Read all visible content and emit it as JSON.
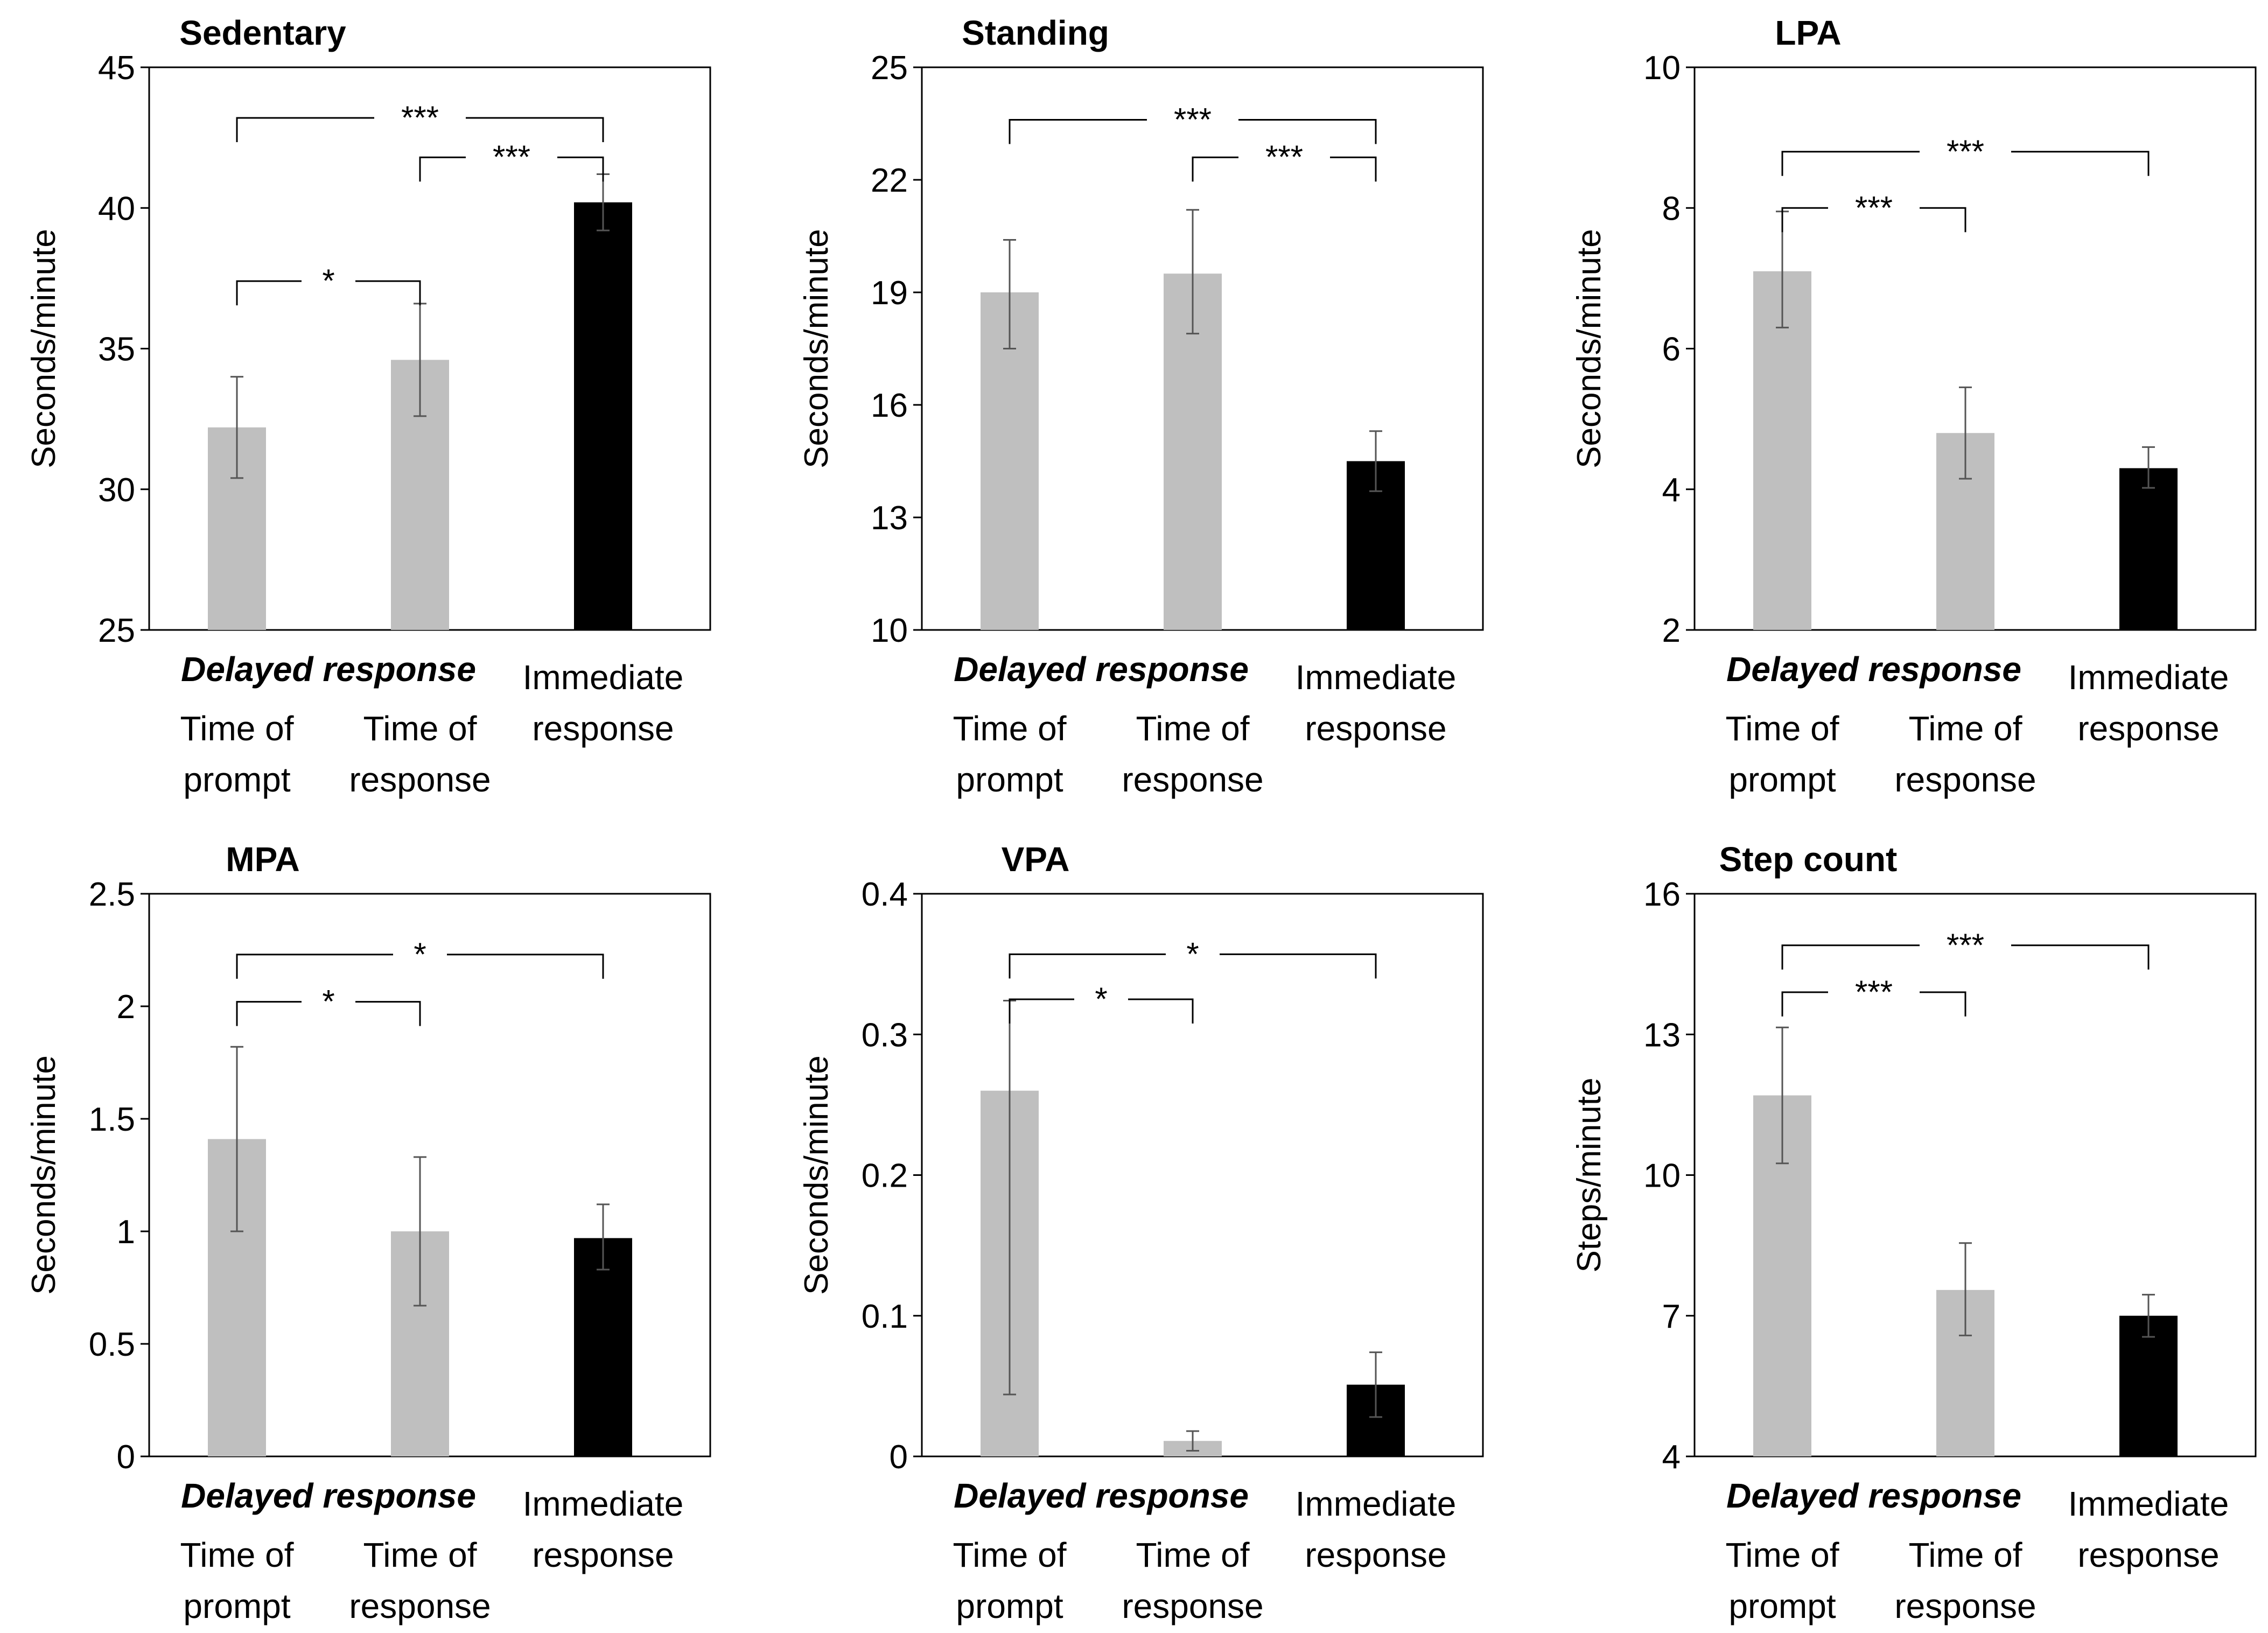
{
  "chart_data": [
    {
      "type": "bar",
      "title": "Sedentary",
      "ylabel": "Seconds/minute",
      "ylim": [
        25,
        45
      ],
      "yticks": [
        "25",
        "30",
        "35",
        "40",
        "45"
      ],
      "group_label": "Delayed response",
      "categories": [
        [
          "Time of",
          "prompt"
        ],
        [
          "Time of",
          "response"
        ],
        [
          "Immediate",
          "response"
        ]
      ],
      "values": [
        32.2,
        34.6,
        40.2
      ],
      "errors": [
        [
          30.4,
          34.0
        ],
        [
          32.6,
          36.6
        ],
        [
          39.2,
          41.2
        ]
      ],
      "colors": [
        "#bfbfbf",
        "#bfbfbf",
        "#000000"
      ],
      "brackets": [
        {
          "from": 0,
          "to": 2,
          "label": "***",
          "at": 43.2
        },
        {
          "from": 1,
          "to": 2,
          "label": "***",
          "at": 41.8
        },
        {
          "from": 0,
          "to": 1,
          "label": "*",
          "at": 37.4
        }
      ]
    },
    {
      "type": "bar",
      "title": "Standing",
      "ylabel": "Seconds/minute",
      "ylim": [
        10,
        25
      ],
      "yticks": [
        "10",
        "13",
        "16",
        "19",
        "22",
        "25"
      ],
      "group_label": "Delayed response",
      "categories": [
        [
          "Time of",
          "prompt"
        ],
        [
          "Time of",
          "response"
        ],
        [
          "Immediate",
          "response"
        ]
      ],
      "values": [
        19.0,
        19.5,
        14.5
      ],
      "errors": [
        [
          17.5,
          20.4
        ],
        [
          17.9,
          21.2
        ],
        [
          13.7,
          15.3
        ]
      ],
      "colors": [
        "#bfbfbf",
        "#bfbfbf",
        "#000000"
      ],
      "brackets": [
        {
          "from": 0,
          "to": 2,
          "label": "***",
          "at": 23.6
        },
        {
          "from": 1,
          "to": 2,
          "label": "***",
          "at": 22.6
        }
      ]
    },
    {
      "type": "bar",
      "title": "LPA",
      "ylabel": "Seconds/minute",
      "ylim": [
        2,
        10
      ],
      "yticks": [
        "2",
        "4",
        "6",
        "8",
        "10"
      ],
      "group_label": "Delayed response",
      "categories": [
        [
          "Time of",
          "prompt"
        ],
        [
          "Time of",
          "response"
        ],
        [
          "Immediate",
          "response"
        ]
      ],
      "values": [
        7.1,
        4.8,
        4.3
      ],
      "errors": [
        [
          6.3,
          7.95
        ],
        [
          4.15,
          5.45
        ],
        [
          4.02,
          4.6
        ]
      ],
      "colors": [
        "#bfbfbf",
        "#bfbfbf",
        "#000000"
      ],
      "brackets": [
        {
          "from": 0,
          "to": 2,
          "label": "***",
          "at": 8.8
        },
        {
          "from": 0,
          "to": 1,
          "label": "***",
          "at": 8.0
        }
      ]
    },
    {
      "type": "bar",
      "title": "MPA",
      "ylabel": "Seconds/minute",
      "ylim": [
        0,
        2.5
      ],
      "yticks": [
        "0",
        "0.5",
        "1",
        "1.5",
        "2",
        "2.5"
      ],
      "group_label": "Delayed response",
      "categories": [
        [
          "Time of",
          "prompt"
        ],
        [
          "Time of",
          "response"
        ],
        [
          "Immediate",
          "response"
        ]
      ],
      "values": [
        1.41,
        1.0,
        0.97
      ],
      "errors": [
        [
          1.0,
          1.82
        ],
        [
          0.67,
          1.33
        ],
        [
          0.83,
          1.12
        ]
      ],
      "colors": [
        "#bfbfbf",
        "#bfbfbf",
        "#000000"
      ],
      "brackets": [
        {
          "from": 0,
          "to": 2,
          "label": "*",
          "at": 2.23
        },
        {
          "from": 0,
          "to": 1,
          "label": "*",
          "at": 2.02
        }
      ]
    },
    {
      "type": "bar",
      "title": "VPA",
      "ylabel": "Seconds/minute",
      "ylim": [
        0,
        0.4
      ],
      "yticks": [
        "0",
        "0.1",
        "0.2",
        "0.3",
        "0.4"
      ],
      "group_label": "Delayed response",
      "categories": [
        [
          "Time of",
          "prompt"
        ],
        [
          "Time of",
          "response"
        ],
        [
          "Immediate",
          "response"
        ]
      ],
      "values": [
        0.26,
        0.011,
        0.051
      ],
      "errors": [
        [
          0.044,
          0.324
        ],
        [
          0.004,
          0.018
        ],
        [
          0.028,
          0.074
        ]
      ],
      "colors": [
        "#bfbfbf",
        "#bfbfbf",
        "#000000"
      ],
      "brackets": [
        {
          "from": 0,
          "to": 2,
          "label": "*",
          "at": 0.357
        },
        {
          "from": 0,
          "to": 1,
          "label": "*",
          "at": 0.325
        }
      ]
    },
    {
      "type": "bar",
      "title": "Step count",
      "ylabel": "Steps/minute",
      "ylim": [
        4,
        16
      ],
      "yticks": [
        "4",
        "7",
        "10",
        "13",
        "16"
      ],
      "group_label": "Delayed response",
      "categories": [
        [
          "Time of",
          "prompt"
        ],
        [
          "Time of",
          "response"
        ],
        [
          "Immediate",
          "response"
        ]
      ],
      "values": [
        11.7,
        7.55,
        7.0
      ],
      "errors": [
        [
          10.25,
          13.15
        ],
        [
          6.58,
          8.55
        ],
        [
          6.55,
          7.45
        ]
      ],
      "colors": [
        "#bfbfbf",
        "#bfbfbf",
        "#000000"
      ],
      "brackets": [
        {
          "from": 0,
          "to": 2,
          "label": "***",
          "at": 14.9
        },
        {
          "from": 0,
          "to": 1,
          "label": "***",
          "at": 13.9
        }
      ]
    }
  ]
}
